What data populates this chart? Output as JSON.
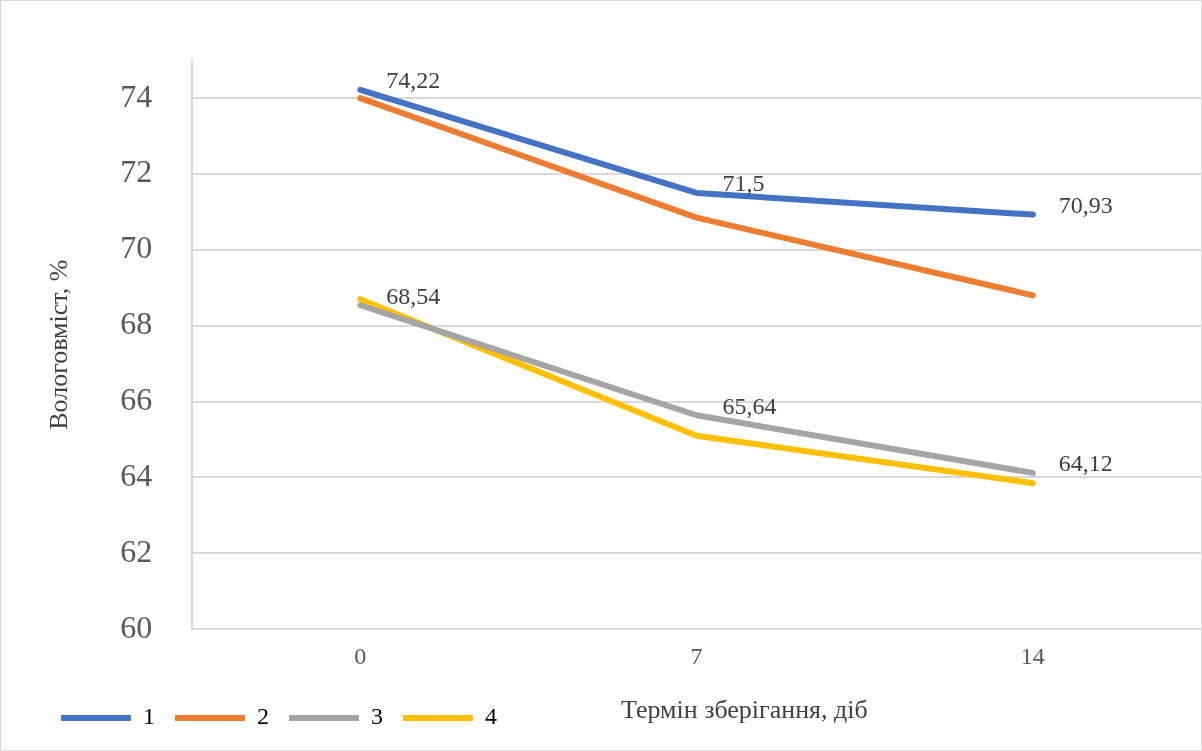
{
  "chart_data": {
    "type": "line",
    "xlabel": "Термін зберігання, діб",
    "ylabel": "Вологовміст, %",
    "categories": [
      "0",
      "7",
      "14"
    ],
    "series": [
      {
        "name": "1",
        "color": "#4472c4",
        "values": [
          74.22,
          71.5,
          70.93
        ],
        "value_labels": [
          "74,22",
          "71,5",
          "70,93"
        ]
      },
      {
        "name": "2",
        "color": "#ed7d31",
        "values": [
          74.0,
          70.85,
          68.8
        ]
      },
      {
        "name": "3",
        "color": "#a5a5a5",
        "values": [
          68.54,
          65.64,
          64.12
        ],
        "value_labels": [
          "68,54",
          "65,64",
          "64,12"
        ]
      },
      {
        "name": "4",
        "color": "#ffc000",
        "values": [
          68.7,
          65.1,
          63.85
        ]
      }
    ],
    "ylim": [
      60,
      75
    ],
    "yticks": [
      60,
      62,
      64,
      66,
      68,
      70,
      72,
      74
    ],
    "grid": "y",
    "legend": "bottom",
    "marker": "none",
    "line_style": "solid"
  }
}
